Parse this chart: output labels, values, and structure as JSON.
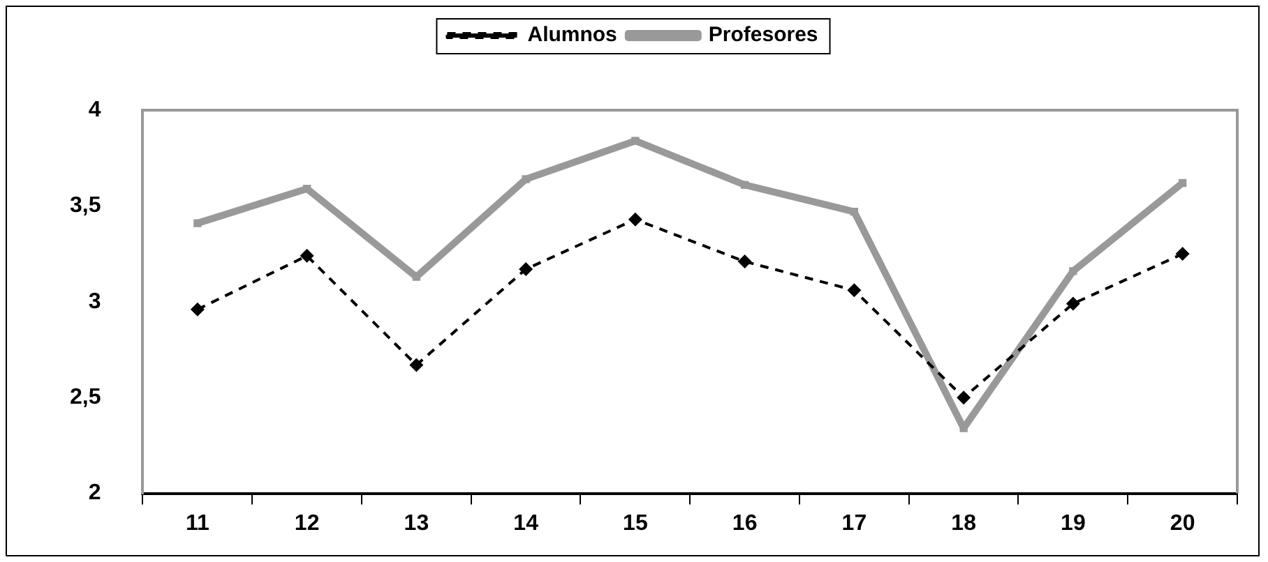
{
  "chart_data": {
    "type": "line",
    "categories": [
      "11",
      "12",
      "13",
      "14",
      "15",
      "16",
      "17",
      "18",
      "19",
      "20"
    ],
    "series": [
      {
        "name": "Alumnos",
        "color": "#000000",
        "marker": "diamond",
        "line_style": "dashed",
        "values": [
          2.96,
          3.24,
          2.67,
          3.17,
          3.43,
          3.21,
          3.06,
          2.5,
          2.99,
          3.25
        ]
      },
      {
        "name": "Profesores",
        "color": "#999999",
        "marker": "square",
        "line_style": "solid",
        "values": [
          3.41,
          3.59,
          3.13,
          3.64,
          3.84,
          3.61,
          3.47,
          2.34,
          3.16,
          3.62
        ]
      }
    ],
    "ylim": [
      2,
      4
    ],
    "yticks": [
      2,
      {
        "value": 2.5,
        "label": "2,5"
      },
      3,
      {
        "value": 3.5,
        "label": "3,5"
      },
      4
    ],
    "grid": false,
    "legend": "top"
  }
}
